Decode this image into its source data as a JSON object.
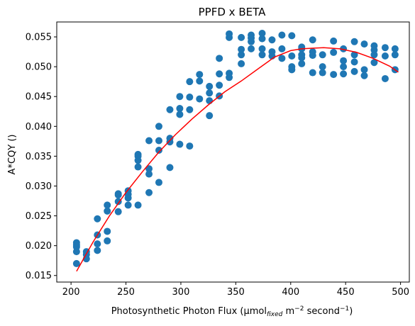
{
  "chart_data": {
    "type": "scatter",
    "title": "PPFD x BETA",
    "xlabel": {
      "prefix": "Photosynthetic Photon Flux (µmol",
      "sub": "fixed",
      "mid": " m",
      "sup1": "−2",
      "mid2": " second",
      "sup2": "−1",
      "suffix": ")"
    },
    "ylabel": "A*CQY ()",
    "xlim": [
      187,
      508
    ],
    "ylim": [
      0.0139,
      0.0575
    ],
    "xticks": [
      200,
      250,
      300,
      350,
      400,
      450,
      500
    ],
    "xtick_labels": [
      "200",
      "250",
      "300",
      "350",
      "400",
      "450",
      "500"
    ],
    "yticks": [
      0.015,
      0.02,
      0.025,
      0.03,
      0.035,
      0.04,
      0.045,
      0.05,
      0.055
    ],
    "ytick_labels": [
      "0.015",
      "0.020",
      "0.025",
      "0.030",
      "0.035",
      "0.040",
      "0.045",
      "0.050",
      "0.055"
    ],
    "grid": false,
    "colors": {
      "points": "#1f77b4",
      "fit": "#ff0000",
      "axes": "#000000"
    },
    "series": [
      {
        "kind": "points",
        "x": [
          205,
          205,
          205,
          205,
          205,
          214,
          214,
          214,
          224,
          224,
          224,
          224,
          233,
          233,
          233,
          233,
          243,
          243,
          243,
          243,
          252,
          252,
          252,
          252,
          261,
          261,
          261,
          261,
          261,
          271,
          271,
          271,
          271,
          280,
          280,
          280,
          280,
          290,
          290,
          290,
          290,
          299,
          299,
          299,
          299,
          308,
          308,
          308,
          308,
          317,
          317,
          317,
          326,
          326,
          326,
          326,
          335,
          335,
          335,
          335,
          344,
          344,
          344,
          344,
          355,
          355,
          355,
          355,
          364,
          364,
          364,
          364,
          374,
          374,
          374,
          374,
          383,
          383,
          383,
          392,
          392,
          392,
          401,
          401,
          401,
          401,
          410,
          410,
          410,
          410,
          410,
          420,
          420,
          420,
          420,
          429,
          429,
          429,
          439,
          439,
          439,
          448,
          448,
          448,
          448,
          458,
          458,
          458,
          458,
          467,
          467,
          467,
          476,
          476,
          476,
          476,
          486,
          486,
          486,
          495,
          495,
          495
        ],
        "y": [
          0.017,
          0.019,
          0.0198,
          0.0201,
          0.0205,
          0.0178,
          0.0185,
          0.019,
          0.0192,
          0.0203,
          0.0218,
          0.0245,
          0.0208,
          0.0224,
          0.0258,
          0.0268,
          0.0257,
          0.0274,
          0.0285,
          0.0287,
          0.0268,
          0.028,
          0.0286,
          0.0292,
          0.0268,
          0.0332,
          0.0343,
          0.035,
          0.0353,
          0.0289,
          0.032,
          0.0329,
          0.0376,
          0.0306,
          0.036,
          0.0376,
          0.04,
          0.0331,
          0.0374,
          0.038,
          0.0428,
          0.037,
          0.042,
          0.043,
          0.045,
          0.0367,
          0.0428,
          0.0449,
          0.0475,
          0.0446,
          0.0476,
          0.0487,
          0.0418,
          0.0443,
          0.0456,
          0.0467,
          0.0451,
          0.0469,
          0.0488,
          0.0514,
          0.0482,
          0.0489,
          0.0549,
          0.0555,
          0.0505,
          0.052,
          0.0529,
          0.0549,
          0.053,
          0.0542,
          0.0548,
          0.0553,
          0.052,
          0.053,
          0.0547,
          0.0556,
          0.0518,
          0.0525,
          0.0545,
          0.0514,
          0.053,
          0.0553,
          0.0495,
          0.05,
          0.0518,
          0.0552,
          0.0505,
          0.0515,
          0.052,
          0.053,
          0.0533,
          0.049,
          0.0519,
          0.0525,
          0.0545,
          0.049,
          0.05,
          0.052,
          0.0487,
          0.0524,
          0.0543,
          0.0488,
          0.05,
          0.051,
          0.053,
          0.0492,
          0.0508,
          0.052,
          0.0542,
          0.0485,
          0.0495,
          0.0538,
          0.0507,
          0.052,
          0.0528,
          0.0535,
          0.048,
          0.0518,
          0.0532,
          0.0495,
          0.052,
          0.053
        ]
      },
      {
        "kind": "line",
        "x": [
          205,
          220,
          235,
          250,
          265,
          280,
          295,
          310,
          325,
          340,
          355,
          370,
          385,
          400,
          410,
          420,
          430,
          445,
          460,
          475,
          490,
          498
        ],
        "y": [
          0.0157,
          0.0206,
          0.025,
          0.0289,
          0.0324,
          0.0357,
          0.0386,
          0.0412,
          0.0436,
          0.0458,
          0.0476,
          0.0496,
          0.0516,
          0.0527,
          0.053,
          0.0531,
          0.0532,
          0.053,
          0.0524,
          0.0514,
          0.0501,
          0.0491
        ]
      }
    ]
  }
}
